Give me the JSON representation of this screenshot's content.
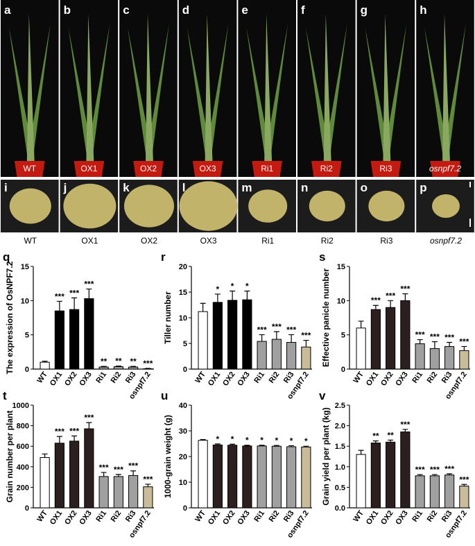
{
  "photo_panels": {
    "plants": [
      {
        "letter": "a",
        "label": "WT"
      },
      {
        "letter": "b",
        "label": "OX1"
      },
      {
        "letter": "c",
        "label": "OX2"
      },
      {
        "letter": "d",
        "label": "OX3"
      },
      {
        "letter": "e",
        "label": "Ri1"
      },
      {
        "letter": "f",
        "label": "Ri2"
      },
      {
        "letter": "g",
        "label": "Ri3"
      },
      {
        "letter": "h",
        "label": "osnpf7.2"
      }
    ],
    "grains": [
      {
        "letter": "i",
        "label": "WT"
      },
      {
        "letter": "j",
        "label": "OX1"
      },
      {
        "letter": "k",
        "label": "OX2"
      },
      {
        "letter": "l",
        "label": "OX3"
      },
      {
        "letter": "m",
        "label": "Ri1"
      },
      {
        "letter": "n",
        "label": "Ri2"
      },
      {
        "letter": "o",
        "label": "Ri3"
      },
      {
        "letter": "p",
        "label": "osnpf7.2"
      }
    ]
  },
  "chart_data": [
    {
      "type": "bar",
      "panel": "q",
      "y_label": "The expression of OsNPF7.2",
      "categories": [
        "WT",
        "OX1",
        "OX2",
        "OX3",
        "Ri1",
        "Ri2",
        "Ri3",
        "osnpf7.2"
      ],
      "values": [
        1.0,
        8.5,
        8.7,
        10.3,
        0.3,
        0.35,
        0.3,
        0.05
      ],
      "errors": [
        0.15,
        1.4,
        1.7,
        1.4,
        0.1,
        0.1,
        0.1,
        0.05
      ],
      "significance": [
        null,
        "***",
        "***",
        "***",
        "**",
        "**",
        "**",
        "***"
      ],
      "colors": [
        "#ffffff",
        "#000000",
        "#000000",
        "#000000",
        "#a0a0a0",
        "#a0a0a0",
        "#a0a0a0",
        "#c8bd98"
      ],
      "ylim": [
        0,
        15
      ],
      "yticks": [
        0,
        5,
        10,
        15
      ]
    },
    {
      "type": "bar",
      "panel": "r",
      "y_label": "Tiller number",
      "categories": [
        "WT",
        "OX1",
        "OX2",
        "OX3",
        "Ri1",
        "Ri2",
        "Ri3",
        "osnpf7.2"
      ],
      "values": [
        11.2,
        13,
        13.4,
        13.5,
        5.4,
        5.8,
        5.2,
        4.3
      ],
      "errors": [
        1.6,
        1.6,
        1.8,
        1.7,
        1.3,
        1.5,
        1.5,
        1.3
      ],
      "significance": [
        null,
        "*",
        "*",
        "*",
        "***",
        "***",
        "***",
        "***"
      ],
      "colors": [
        "#ffffff",
        "#000000",
        "#000000",
        "#000000",
        "#a0a0a0",
        "#a0a0a0",
        "#a0a0a0",
        "#c8bd98"
      ],
      "ylim": [
        0,
        20
      ],
      "yticks": [
        0,
        5,
        10,
        15,
        20
      ]
    },
    {
      "type": "bar",
      "panel": "s",
      "y_label": "Effective panicle number",
      "categories": [
        "WT",
        "OX1",
        "OX2",
        "OX3",
        "Ri1",
        "Ri2",
        "Ri3",
        "osnpf7.2"
      ],
      "values": [
        6,
        8.7,
        9,
        10,
        3.7,
        3,
        3.3,
        2.7
      ],
      "errors": [
        1,
        0.6,
        1,
        1,
        0.6,
        1,
        0.6,
        0.6
      ],
      "significance": [
        null,
        "***",
        "***",
        "***",
        "***",
        "***",
        "***",
        "***"
      ],
      "colors": [
        "#ffffff",
        "#2b1f1f",
        "#2b1f1f",
        "#2b1f1f",
        "#a0a0a0",
        "#a0a0a0",
        "#a0a0a0",
        "#c8bd98"
      ],
      "ylim": [
        0,
        15
      ],
      "yticks": [
        0,
        5,
        10,
        15
      ]
    },
    {
      "type": "bar",
      "panel": "t",
      "y_label": "Grain number per plant",
      "categories": [
        "WT",
        "OX1",
        "OX2",
        "OX3",
        "Ri1",
        "Ri2",
        "Ri3",
        "osnpf7.2"
      ],
      "values": [
        490,
        630,
        650,
        770,
        305,
        305,
        315,
        205
      ],
      "errors": [
        35,
        65,
        50,
        60,
        40,
        20,
        45,
        25
      ],
      "significance": [
        null,
        "***",
        "***",
        "***",
        "***",
        "***",
        "***",
        "***"
      ],
      "colors": [
        "#ffffff",
        "#2b1f1f",
        "#2b1f1f",
        "#2b1f1f",
        "#a0a0a0",
        "#a0a0a0",
        "#a0a0a0",
        "#c8bd98"
      ],
      "ylim": [
        0,
        1000
      ],
      "yticks": [
        0,
        200,
        400,
        600,
        800,
        1000
      ]
    },
    {
      "type": "bar",
      "panel": "u",
      "y_label": "1000-grain weight (g)",
      "categories": [
        "WT",
        "OX1",
        "OX2",
        "OX3",
        "Ri1",
        "Ri2",
        "Ri3",
        "osnpf7.2"
      ],
      "values": [
        26.3,
        24.5,
        24.4,
        24.1,
        24.1,
        24,
        23.8,
        23.7
      ],
      "errors": [
        0.3,
        0.4,
        0.4,
        0.3,
        0.3,
        0.3,
        0.4,
        0.3
      ],
      "significance": [
        null,
        "*",
        "*",
        "*",
        "*",
        "*",
        "*",
        "*"
      ],
      "colors": [
        "#ffffff",
        "#2b1f1f",
        "#2b1f1f",
        "#2b1f1f",
        "#a0a0a0",
        "#a0a0a0",
        "#a0a0a0",
        "#c8bd98"
      ],
      "ylim": [
        0,
        40
      ],
      "yticks": [
        0,
        10,
        20,
        30,
        40
      ]
    },
    {
      "type": "bar",
      "panel": "v",
      "y_label": "Grain yield per plant (kg)",
      "categories": [
        "WT",
        "OX1",
        "OX2",
        "OX3",
        "Ri1",
        "Ri2",
        "Ri3",
        "osnpf7.2"
      ],
      "values": [
        1.3,
        1.58,
        1.6,
        1.85,
        0.78,
        0.78,
        0.8,
        0.53
      ],
      "errors": [
        0.1,
        0.05,
        0.05,
        0.06,
        0.03,
        0.03,
        0.03,
        0.04
      ],
      "significance": [
        null,
        "**",
        "**",
        "***",
        "***",
        "***",
        "***",
        "***"
      ],
      "colors": [
        "#ffffff",
        "#2b1f1f",
        "#2b1f1f",
        "#2b1f1f",
        "#a0a0a0",
        "#a0a0a0",
        "#a0a0a0",
        "#c8bd98"
      ],
      "ylim": [
        0,
        2.5
      ],
      "yticks": [
        {
          "value": 0,
          "label": "0.0"
        },
        {
          "value": 0.5,
          "label": "0.5"
        },
        {
          "value": 1,
          "label": "1.0"
        },
        {
          "value": 1.5,
          "label": "1.5"
        },
        {
          "value": 2,
          "label": "2.0"
        },
        {
          "value": 2.5,
          "label": "2.5"
        }
      ]
    }
  ]
}
